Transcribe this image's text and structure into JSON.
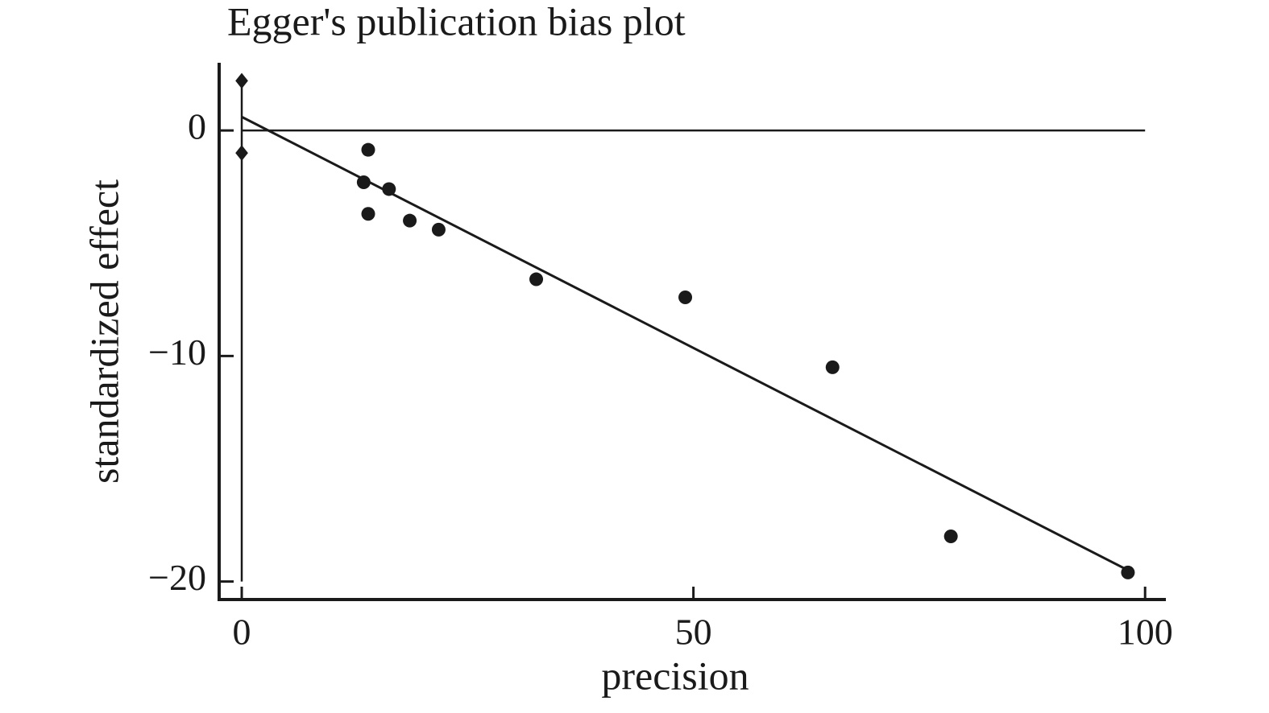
{
  "chart_data": {
    "type": "scatter",
    "title": "Egger's publication bias plot",
    "x_label": "precision",
    "y_label": "standardized effect",
    "x": [
      14.0,
      13.5,
      16.3,
      14.0,
      18.6,
      21.8,
      32.6,
      49.1,
      65.4,
      78.5,
      98.1
    ],
    "values": [
      -0.86,
      -2.3,
      -2.6,
      -3.7,
      -4.0,
      -4.4,
      -6.6,
      -7.4,
      -10.5,
      -18.0,
      -19.6
    ],
    "color": "#1a1a1a",
    "fit_line": {
      "x": [
        0,
        98.1
      ],
      "values": [
        0.6,
        -19.5
      ]
    },
    "ci": {
      "x": 0,
      "upper": 2.2,
      "lower": -1.0
    },
    "hline": 0,
    "xlim": [
      -2.5,
      102.3
    ],
    "ylim": [
      -20.8,
      3.0
    ],
    "xticks": [
      0,
      50,
      100
    ],
    "yticks": [
      {
        "value": 0,
        "label": "0"
      },
      {
        "value": -10,
        "label": "−10"
      },
      {
        "value": -20,
        "label": "−20"
      }
    ],
    "grid": false
  }
}
